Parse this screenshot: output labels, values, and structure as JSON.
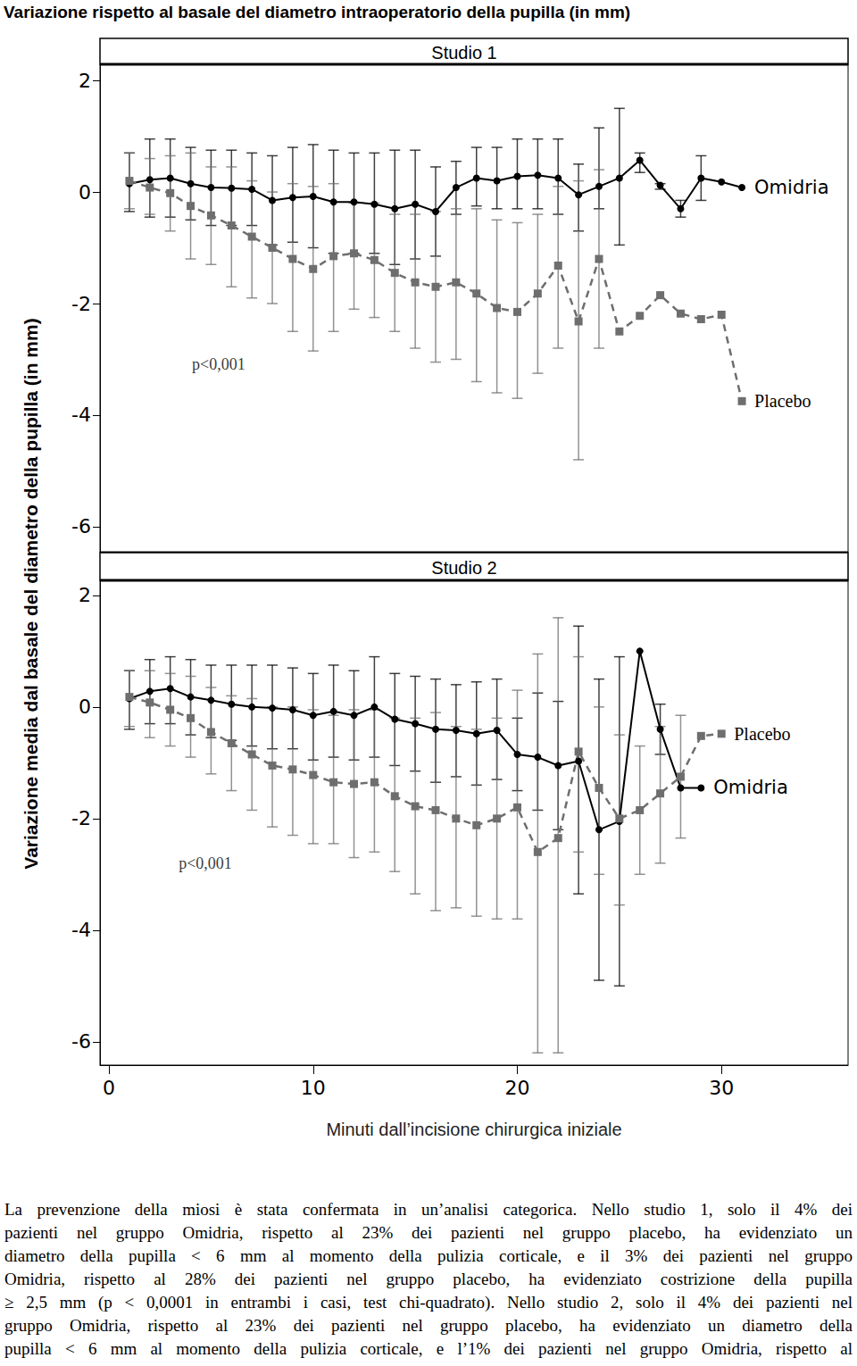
{
  "heading": "Variazione rispetto al basale del diametro intraoperatorio della pupilla (in mm)",
  "ylabel": "Variazione media dal basale del diametro della pupilla (in mm)",
  "text": [
    "La prevenzione della miosi è stata confermata in un’analisi categorica. Nello studio 1, solo il 4% dei",
    "pazienti nel gruppo Omidria, rispetto al 23% dei pazienti nel gruppo placebo, ha evidenziato un",
    "diametro della pupilla < 6 mm al momento della pulizia corticale, e il 3% dei pazienti nel gruppo",
    "Omidria, rispetto al 28% dei pazienti nel gruppo placebo, ha evidenziato costrizione della pupilla",
    "≥ 2,5 mm (p < 0,0001 in entrambi i casi, test chi-quadrato). Nello studio 2, solo il 4% dei pazienti nel",
    "gruppo Omidria, rispetto al 23% dei pazienti nel gruppo placebo, ha evidenziato un diametro della",
    "pupilla < 6 mm al momento della pulizia corticale, e l’1% dei pazienti nel gruppo Omidria, rispetto al"
  ],
  "chart_data": [
    {
      "type": "line",
      "title": "Studio 1",
      "x": [
        1,
        2,
        3,
        4,
        5,
        6,
        7,
        8,
        9,
        10,
        11,
        12,
        13,
        14,
        15,
        16,
        17,
        18,
        19,
        20,
        21,
        22,
        23,
        24,
        25,
        26,
        27,
        28,
        29,
        30,
        31
      ],
      "xlim": [
        -0.44,
        36.2
      ],
      "ylim": [
        -6.45,
        2.29
      ],
      "yticks": [
        -6,
        -4,
        -2,
        0,
        2
      ],
      "tick_labels": "y",
      "annotations": [
        {
          "text": "p<0,001",
          "x": 5.37,
          "y": -3.09
        }
      ],
      "series": [
        {
          "name": "Omidria",
          "color": "#000000",
          "marker": "circle",
          "line_style": "solid",
          "values": [
            0.15,
            0.22,
            0.25,
            0.15,
            0.08,
            0.07,
            0.05,
            -0.15,
            -0.1,
            -0.08,
            -0.18,
            -0.18,
            -0.22,
            -0.3,
            -0.22,
            -0.35,
            0.08,
            0.25,
            0.2,
            0.28,
            0.3,
            0.25,
            -0.05,
            0.1,
            0.25,
            0.57,
            0.12,
            -0.3,
            0.25,
            0.18,
            0.08
          ],
          "errors": [
            [
              -0.35,
              0.7
            ],
            [
              -0.45,
              0.95
            ],
            [
              -0.45,
              0.95
            ],
            [
              -0.5,
              0.8
            ],
            [
              -0.6,
              0.75
            ],
            [
              -0.6,
              0.75
            ],
            [
              -0.6,
              0.7
            ],
            [
              -0.95,
              0.65
            ],
            [
              -0.9,
              0.8
            ],
            [
              -1.0,
              0.85
            ],
            [
              -1.1,
              0.75
            ],
            [
              -1.1,
              0.7
            ],
            [
              -1.1,
              0.7
            ],
            [
              -1.3,
              0.75
            ],
            [
              -1.2,
              0.75
            ],
            [
              -1.15,
              0.45
            ],
            [
              -0.4,
              0.55
            ],
            [
              -0.25,
              0.8
            ],
            [
              -0.3,
              0.8
            ],
            [
              -0.3,
              0.95
            ],
            [
              -0.3,
              0.95
            ],
            [
              -0.4,
              0.95
            ],
            [
              -0.7,
              0.5
            ],
            [
              -0.3,
              1.15
            ],
            [
              -0.95,
              1.5
            ],
            [
              0.35,
              0.7
            ],
            [
              0.05,
              0.15
            ],
            [
              -0.45,
              -0.15
            ],
            [
              -0.15,
              0.65
            ],
            null,
            null
          ]
        },
        {
          "name": "Placebo",
          "color": "#6e6e6e",
          "marker": "square",
          "line_style": "dashed",
          "values": [
            0.2,
            0.08,
            -0.02,
            -0.25,
            -0.42,
            -0.6,
            -0.8,
            -1.0,
            -1.2,
            -1.38,
            -1.15,
            -1.1,
            -1.22,
            -1.45,
            -1.62,
            -1.7,
            -1.62,
            -1.82,
            -2.08,
            -2.15,
            -1.82,
            -1.32,
            -2.32,
            -1.2,
            -2.5,
            -2.22,
            -1.85,
            -2.18,
            -2.28,
            -2.2,
            -3.75
          ],
          "errors": [
            [
              -0.3,
              0.7
            ],
            [
              -0.4,
              0.6
            ],
            [
              -0.7,
              0.65
            ],
            [
              -1.2,
              0.7
            ],
            [
              -1.3,
              0.45
            ],
            [
              -1.7,
              0.45
            ],
            [
              -1.9,
              0.2
            ],
            [
              -2.0,
              0.0
            ],
            [
              -2.5,
              0.15
            ],
            [
              -2.85,
              0.1
            ],
            [
              -2.5,
              0.15
            ],
            [
              -2.1,
              -0.2
            ],
            [
              -2.25,
              -0.2
            ],
            [
              -2.5,
              -0.4
            ],
            [
              -2.8,
              -0.4
            ],
            [
              -3.05,
              -0.35
            ],
            [
              -3.0,
              -0.3
            ],
            [
              -3.4,
              -0.3
            ],
            [
              -3.6,
              -0.5
            ],
            [
              -3.7,
              -0.55
            ],
            [
              -3.25,
              -0.4
            ],
            [
              -2.8,
              0.1
            ],
            [
              -4.8,
              0.2
            ],
            [
              -2.8,
              0.4
            ],
            null,
            null,
            null,
            null,
            null,
            null,
            null
          ]
        }
      ]
    },
    {
      "type": "line",
      "title": "Studio 2",
      "xlabel": "Minuti dall’incisione chirurgica iniziale",
      "x": [
        1,
        2,
        3,
        4,
        5,
        6,
        7,
        8,
        9,
        10,
        11,
        12,
        13,
        14,
        15,
        16,
        17,
        18,
        19,
        20,
        21,
        22,
        23,
        24,
        25,
        26,
        27,
        28,
        29,
        30
      ],
      "xlim": [
        -0.44,
        36.2
      ],
      "xticks": [
        0,
        10,
        20,
        30
      ],
      "ylim": [
        -6.42,
        2.27
      ],
      "yticks": [
        -6,
        -4,
        -2,
        0,
        2
      ],
      "annotations": [
        {
          "text": "p<0,001",
          "x": 4.72,
          "y": -2.8
        }
      ],
      "series": [
        {
          "name": "Omidria",
          "color": "#000000",
          "marker": "circle",
          "line_style": "solid",
          "values": [
            0.15,
            0.28,
            0.33,
            0.18,
            0.12,
            0.05,
            0.0,
            -0.02,
            -0.05,
            -0.15,
            -0.08,
            -0.15,
            0.0,
            -0.22,
            -0.3,
            -0.4,
            -0.42,
            -0.48,
            -0.42,
            -0.85,
            -0.9,
            -1.05,
            -0.97,
            -2.2,
            -2.05,
            1.0,
            -0.4,
            -1.45,
            -1.45,
            null
          ],
          "errors": [
            [
              -0.4,
              0.65
            ],
            [
              -0.3,
              0.85
            ],
            [
              -0.3,
              0.9
            ],
            [
              -0.5,
              0.85
            ],
            [
              -0.55,
              0.75
            ],
            [
              -0.6,
              0.75
            ],
            [
              -0.7,
              0.75
            ],
            [
              -0.75,
              0.75
            ],
            [
              -0.75,
              0.7
            ],
            [
              -0.95,
              0.6
            ],
            [
              -0.9,
              0.75
            ],
            [
              -0.95,
              0.65
            ],
            [
              -0.9,
              0.9
            ],
            [
              -1.05,
              0.6
            ],
            [
              -1.15,
              0.55
            ],
            [
              -1.35,
              0.5
            ],
            [
              -1.25,
              0.4
            ],
            [
              -1.4,
              0.45
            ],
            [
              -1.3,
              0.5
            ],
            [
              -1.5,
              -0.2
            ],
            [
              -1.85,
              0.25
            ],
            [
              -2.2,
              0.1
            ],
            [
              -3.35,
              1.45
            ],
            [
              -4.9,
              0.5
            ],
            [
              -5.0,
              0.9
            ],
            null,
            [
              -0.85,
              0.05
            ],
            null,
            null,
            null
          ]
        },
        {
          "name": "Placebo",
          "color": "#6e6e6e",
          "marker": "square",
          "line_style": "dashed",
          "values": [
            0.18,
            0.08,
            -0.05,
            -0.2,
            -0.45,
            -0.65,
            -0.85,
            -1.05,
            -1.12,
            -1.22,
            -1.35,
            -1.38,
            -1.35,
            -1.6,
            -1.78,
            -1.85,
            -2.0,
            -2.12,
            -2.0,
            -1.8,
            -2.6,
            -2.35,
            -0.8,
            -1.45,
            -2.0,
            -1.85,
            -1.55,
            -1.25,
            -0.52,
            -0.48
          ],
          "errors": [
            [
              -0.35,
              0.65
            ],
            [
              -0.55,
              0.65
            ],
            [
              -0.7,
              0.6
            ],
            [
              -0.9,
              0.55
            ],
            [
              -1.2,
              0.35
            ],
            [
              -1.5,
              0.2
            ],
            [
              -1.85,
              0.15
            ],
            [
              -2.15,
              0.0
            ],
            [
              -2.3,
              0.0
            ],
            [
              -2.45,
              -0.05
            ],
            [
              -2.45,
              -0.15
            ],
            [
              -2.7,
              -0.05
            ],
            [
              -2.6,
              -0.05
            ],
            [
              -2.95,
              -0.2
            ],
            [
              -3.35,
              -0.2
            ],
            [
              -3.65,
              -0.1
            ],
            [
              -3.6,
              -0.35
            ],
            [
              -3.75,
              -0.4
            ],
            [
              -3.8,
              -0.2
            ],
            [
              -3.8,
              0.3
            ],
            [
              -6.2,
              0.95
            ],
            [
              -6.2,
              1.6
            ],
            [
              -2.6,
              0.9
            ],
            [
              -3.0,
              0.0
            ],
            [
              -3.55,
              -0.5
            ],
            [
              -3.0,
              -0.7
            ],
            [
              -2.8,
              -0.35
            ],
            [
              -2.35,
              -0.15
            ],
            null,
            null
          ]
        }
      ]
    }
  ]
}
